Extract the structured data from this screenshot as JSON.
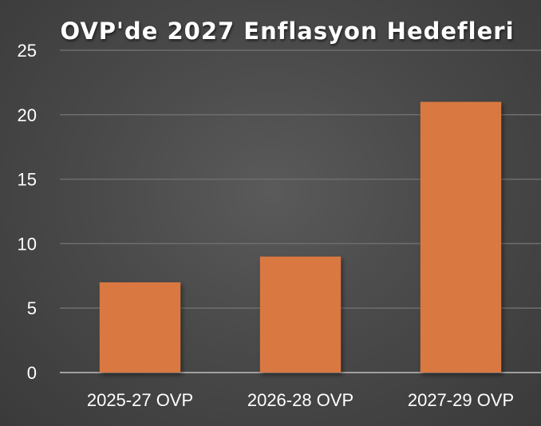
{
  "chart_data": {
    "type": "bar",
    "title": "OVP'de 2027 Enflasyon Hedefleri",
    "categories": [
      "2025-27 OVP",
      "2026-28 OVP",
      "2027-29 OVP"
    ],
    "values": [
      7,
      9,
      21
    ],
    "ylim": [
      0,
      25
    ],
    "yticks": [
      0,
      5,
      10,
      15,
      20,
      25
    ],
    "xlabel": "",
    "ylabel": "",
    "grid": true,
    "legend": "none"
  },
  "colors": {
    "bar": "#D97841",
    "gridline": "#6e6e6e",
    "axis_text": "#ffffff",
    "background": "#4a4a4a"
  }
}
